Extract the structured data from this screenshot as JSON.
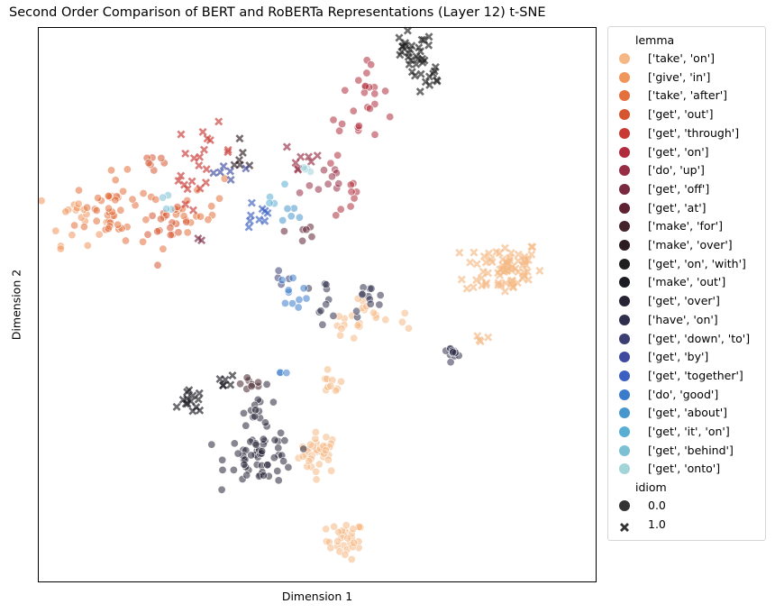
{
  "chart_data": {
    "type": "scatter",
    "title": "Second Order Comparison of BERT and RoBERTa Representations (Layer 12) t-SNE",
    "xlabel": "Dimension 1",
    "ylabel": "Dimension 2",
    "xlim": [
      -60,
      60
    ],
    "ylim": [
      -60,
      60
    ],
    "grid": false,
    "ticks_shown": false,
    "legend_placement": "outside upper right",
    "hue_title": "lemma",
    "style_title": "idiom",
    "style_entries": [
      {
        "label": "0.0",
        "marker": "circle"
      },
      {
        "label": "1.0",
        "marker": "x"
      }
    ],
    "series": [
      {
        "name": "['take', 'on']",
        "color": "#f5b884",
        "points": [
          {
            "x": 0.5,
            "y": -32,
            "sd": 2.2,
            "n": 36,
            "idiom": 0
          },
          {
            "x": 6.0,
            "y": -51,
            "sd": 2.0,
            "n": 30,
            "idiom": 0
          },
          {
            "x": 3.0,
            "y": -17,
            "sd": 1.2,
            "n": 10,
            "idiom": 0
          },
          {
            "x": 10,
            "y": -2,
            "sd": 2.2,
            "n": 12,
            "idiom": 0
          },
          {
            "x": 6,
            "y": -6,
            "sd": 1.8,
            "n": 8,
            "idiom": 0
          },
          {
            "x": 20,
            "y": -4,
            "sd": 1.0,
            "n": 3,
            "idiom": 0
          },
          {
            "x": 40,
            "y": 8.0,
            "sd": 5.5,
            "n": 70,
            "idiom": 1
          },
          {
            "x": 35,
            "y": -7,
            "sd": 1.0,
            "n": 4,
            "idiom": 1
          }
        ]
      },
      {
        "name": "['give', 'in']",
        "color": "#f0965c",
        "points": [
          {
            "x": -52,
            "y": 19,
            "sd": 3.0,
            "n": 18,
            "idiom": 0
          }
        ]
      },
      {
        "name": "['take', 'after']",
        "color": "#e4703c",
        "points": [
          {
            "x": -44,
            "y": 20,
            "sd": 4.0,
            "n": 45,
            "idiom": 0
          },
          {
            "x": -26,
            "y": 22,
            "sd": 3.0,
            "n": 18,
            "idiom": 0
          }
        ]
      },
      {
        "name": "['get', 'out']",
        "color": "#d6552f",
        "points": [
          {
            "x": -32,
            "y": 16,
            "sd": 2.2,
            "n": 16,
            "idiom": 0
          },
          {
            "x": -35,
            "y": 31,
            "sd": 1.6,
            "n": 7,
            "idiom": 0
          }
        ]
      },
      {
        "name": "['get', 'through']",
        "color": "#c93a35",
        "points": [
          {
            "x": -24,
            "y": 33,
            "sd": 3.0,
            "n": 16,
            "idiom": 1
          },
          {
            "x": -28,
            "y": 24,
            "sd": 2.0,
            "n": 6,
            "idiom": 1
          }
        ]
      },
      {
        "name": "['get', 'on']",
        "color": "#b12d3d",
        "points": [
          {
            "x": 10,
            "y": 47,
            "sd": 2.5,
            "n": 16,
            "idiom": 0
          },
          {
            "x": 7,
            "y": 36,
            "sd": 3.0,
            "n": 10,
            "idiom": 0
          },
          {
            "x": 8,
            "y": 23,
            "sd": 2.0,
            "n": 8,
            "idiom": 0
          }
        ]
      },
      {
        "name": "['do', 'up']",
        "color": "#962d45",
        "points": [
          {
            "x": 1,
            "y": 26,
            "sd": 3.0,
            "n": 10,
            "idiom": 0
          },
          {
            "x": -3,
            "y": 32,
            "sd": 2.5,
            "n": 8,
            "idiom": 1
          }
        ]
      },
      {
        "name": "['get', 'off']",
        "color": "#7a2a40",
        "points": [
          {
            "x": -25,
            "y": 14,
            "sd": 1.0,
            "n": 2,
            "idiom": 1
          }
        ]
      },
      {
        "name": "['get', 'at']",
        "color": "#5e2233",
        "points": [
          {
            "x": -3,
            "y": 16,
            "sd": 2.0,
            "n": 6,
            "idiom": 0
          }
        ]
      },
      {
        "name": "['make', 'for']",
        "color": "#43222b",
        "points": [
          {
            "x": -14,
            "y": -17,
            "sd": 1.2,
            "n": 8,
            "idiom": 0
          }
        ]
      },
      {
        "name": "['make', 'over']",
        "color": "#2d1d22",
        "points": [
          {
            "x": -16,
            "y": 31,
            "sd": 1.5,
            "n": 6,
            "idiom": 1
          }
        ]
      },
      {
        "name": "['get', 'on', 'with']",
        "color": "#202020",
        "points": [
          {
            "x": 20,
            "y": 54,
            "sd": 2.5,
            "n": 26,
            "idiom": 1
          },
          {
            "x": 24,
            "y": 49,
            "sd": 2.0,
            "n": 12,
            "idiom": 1
          }
        ]
      },
      {
        "name": "['make', 'out']",
        "color": "#1c1c24",
        "points": [
          {
            "x": -27,
            "y": -21,
            "sd": 1.2,
            "n": 14,
            "idiom": 1
          },
          {
            "x": -20,
            "y": -17,
            "sd": 1.2,
            "n": 6,
            "idiom": 1
          }
        ]
      },
      {
        "name": "['get', 'over']",
        "color": "#272234",
        "points": [
          {
            "x": -12,
            "y": -33,
            "sd": 5.0,
            "n": 55,
            "idiom": 0
          },
          {
            "x": -12,
            "y": -22,
            "sd": 2.0,
            "n": 14,
            "idiom": 0
          }
        ]
      },
      {
        "name": "['have', 'on']",
        "color": "#2f2f4d",
        "points": [
          {
            "x": 11,
            "y": 1,
            "sd": 1.8,
            "n": 12,
            "idiom": 0
          },
          {
            "x": 1,
            "y": 1,
            "sd": 2.2,
            "n": 10,
            "idiom": 0
          },
          {
            "x": 29,
            "y": -10,
            "sd": 0.6,
            "n": 12,
            "idiom": 0
          }
        ]
      },
      {
        "name": "['get', 'down', 'to']",
        "color": "#3a3e72",
        "points": [
          {
            "x": -7,
            "y": 4,
            "sd": 1.5,
            "n": 4,
            "idiom": 0
          }
        ]
      },
      {
        "name": "['get', 'by']",
        "color": "#3d4aa0",
        "points": [
          {
            "x": -21,
            "y": 28,
            "sd": 1.8,
            "n": 6,
            "idiom": 1
          }
        ]
      },
      {
        "name": "['get', 'together']",
        "color": "#3b60c2",
        "points": [
          {
            "x": -13,
            "y": 19,
            "sd": 2.0,
            "n": 9,
            "idiom": 1
          }
        ]
      },
      {
        "name": "['do', 'good']",
        "color": "#3a7ccb",
        "points": [
          {
            "x": -5,
            "y": 3,
            "sd": 1.6,
            "n": 10,
            "idiom": 0
          },
          {
            "x": -8,
            "y": -15,
            "sd": 0.6,
            "n": 3,
            "idiom": 0
          }
        ]
      },
      {
        "name": "['get', 'about']",
        "color": "#4797cc",
        "points": [
          {
            "x": -6,
            "y": 20,
            "sd": 1.5,
            "n": 5,
            "idiom": 0
          }
        ]
      },
      {
        "name": "['get', 'it', 'on']",
        "color": "#5aaed4",
        "points": [
          {
            "x": -10,
            "y": 23,
            "sd": 1.5,
            "n": 4,
            "idiom": 0
          }
        ]
      },
      {
        "name": "['get', 'behind']",
        "color": "#7cc0d4",
        "points": [
          {
            "x": -32,
            "y": 22,
            "sd": 1.2,
            "n": 4,
            "idiom": 0
          }
        ]
      },
      {
        "name": "['get', 'onto']",
        "color": "#a3d4d8",
        "points": [
          {
            "x": -3,
            "y": 29,
            "sd": 1.2,
            "n": 4,
            "idiom": 0
          }
        ]
      }
    ]
  }
}
